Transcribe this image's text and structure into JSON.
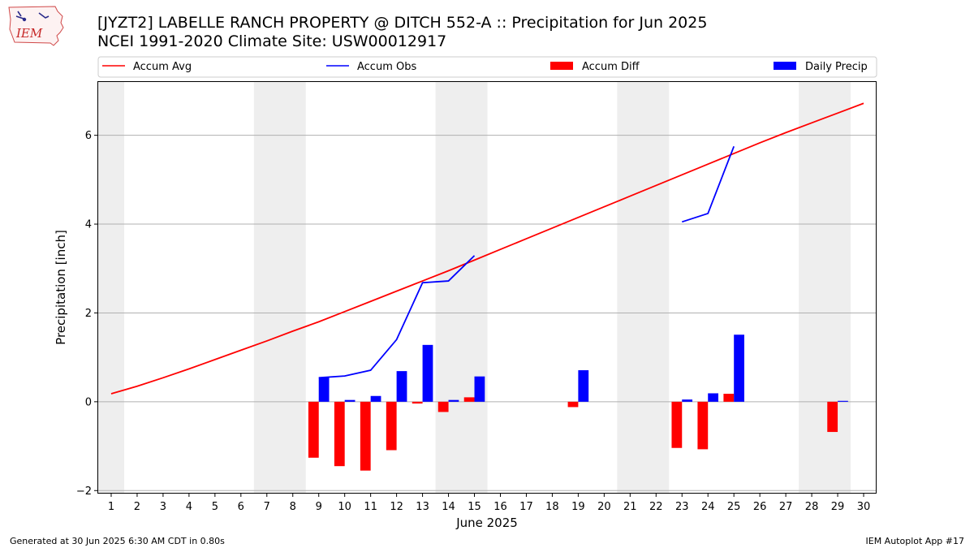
{
  "header": {
    "title_line1": "[JYZT2] LABELLE RANCH PROPERTY @ DITCH 552-A :: Precipitation for Jun 2025",
    "title_line2": "NCEI 1991-2020 Climate Site: USW00012917",
    "logo_text": "IEM"
  },
  "footer": {
    "left": "Generated at 30 Jun 2025 6:30 AM CDT in 0.80s",
    "right": "IEM Autoplot App #17"
  },
  "chart_data": {
    "type": "bar",
    "xlabel": "June 2025",
    "ylabel": "Precipitation [inch]",
    "xlim": [
      0.5,
      30.5
    ],
    "ylim": [
      -2.05,
      7.2
    ],
    "x_ticks": [
      1,
      2,
      3,
      4,
      5,
      6,
      7,
      8,
      9,
      10,
      11,
      12,
      13,
      14,
      15,
      16,
      17,
      18,
      19,
      20,
      21,
      22,
      23,
      24,
      25,
      26,
      27,
      28,
      29,
      30
    ],
    "y_ticks": [
      -2,
      0,
      2,
      4,
      6
    ],
    "grid": "horizontal",
    "legend_placement": "top",
    "weekend_shading": [
      [
        0.5,
        1.5
      ],
      [
        6.5,
        8.5
      ],
      [
        13.5,
        15.5
      ],
      [
        20.5,
        22.5
      ],
      [
        27.5,
        29.5
      ]
    ],
    "series": [
      {
        "name": "Accum Avg",
        "kind": "line",
        "color": "#ff0000",
        "x": [
          1,
          2,
          3,
          4,
          5,
          6,
          7,
          8,
          9,
          10,
          11,
          12,
          13,
          14,
          15,
          16,
          17,
          18,
          19,
          20,
          21,
          22,
          23,
          24,
          25,
          26,
          27,
          28,
          29,
          30
        ],
        "values": [
          0.18,
          0.35,
          0.54,
          0.74,
          0.95,
          1.16,
          1.37,
          1.59,
          1.8,
          2.03,
          2.26,
          2.49,
          2.72,
          2.95,
          3.19,
          3.43,
          3.67,
          3.91,
          4.15,
          4.39,
          4.63,
          4.87,
          5.11,
          5.35,
          5.59,
          5.83,
          6.06,
          6.28,
          6.5,
          6.72
        ]
      },
      {
        "name": "Accum Obs",
        "kind": "line",
        "color": "#0000ff",
        "segments": [
          {
            "x": [
              9,
              10,
              11,
              12,
              13,
              14,
              15
            ],
            "values": [
              0.54,
              0.58,
              0.71,
              1.4,
              2.68,
              2.72,
              3.29
            ]
          },
          {
            "x": [
              23,
              24,
              25
            ],
            "values": [
              4.05,
              4.24,
              5.75
            ]
          }
        ]
      },
      {
        "name": "Accum Diff",
        "kind": "bar",
        "color": "#ff0000",
        "x": [
          9,
          10,
          11,
          12,
          13,
          14,
          15,
          19,
          23,
          24,
          25,
          29
        ],
        "values": [
          -1.26,
          -1.45,
          -1.55,
          -1.09,
          -0.04,
          -0.23,
          0.1,
          -0.12,
          -1.04,
          -1.07,
          0.18,
          -0.68
        ]
      },
      {
        "name": "Daily Precip",
        "kind": "bar",
        "color": "#0000ff",
        "x": [
          9,
          10,
          11,
          12,
          13,
          14,
          15,
          19,
          23,
          24,
          25,
          29
        ],
        "values": [
          0.54,
          0.04,
          0.13,
          0.69,
          1.28,
          0.04,
          0.57,
          0.71,
          0.05,
          0.19,
          1.51,
          0.02
        ]
      }
    ]
  }
}
